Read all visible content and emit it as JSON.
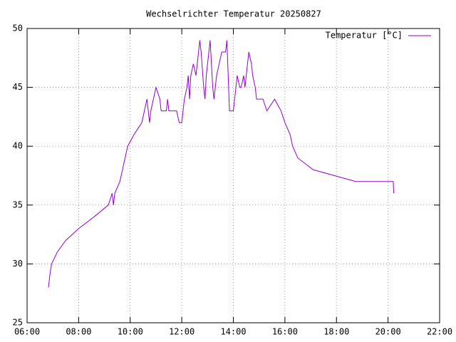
{
  "chart_data": {
    "type": "line",
    "title": "Wechselrichter Temperatur 20250827",
    "x": [
      6.83,
      6.88,
      6.95,
      7.17,
      7.5,
      8.0,
      8.6,
      9.15,
      9.3,
      9.35,
      9.4,
      9.6,
      9.7,
      9.8,
      9.9,
      10.15,
      10.45,
      10.55,
      10.65,
      10.7,
      10.75,
      10.8,
      10.9,
      11.0,
      11.15,
      11.2,
      11.4,
      11.45,
      11.5,
      11.8,
      11.9,
      12.0,
      12.05,
      12.1,
      12.2,
      12.25,
      12.3,
      12.35,
      12.45,
      12.55,
      12.65,
      12.7,
      12.75,
      12.85,
      12.9,
      12.95,
      13.05,
      13.1,
      13.2,
      13.25,
      13.35,
      13.45,
      13.55,
      13.7,
      13.75,
      13.85,
      14.0,
      14.05,
      14.15,
      14.25,
      14.3,
      14.4,
      14.45,
      14.5,
      14.55,
      14.6,
      14.7,
      14.75,
      14.85,
      14.9,
      15.15,
      15.3,
      15.6,
      15.85,
      16.0,
      16.2,
      16.3,
      16.5,
      17.1,
      18.75,
      20.2,
      20.22
    ],
    "series": [
      {
        "name": "Temperatur [°C]",
        "color": "#9400d3",
        "values": [
          28,
          29,
          30,
          31,
          32,
          33,
          34,
          35,
          36,
          35,
          36,
          37,
          38,
          39,
          40,
          41,
          42,
          43,
          44,
          43,
          42,
          43,
          44,
          45,
          44,
          43,
          43,
          44,
          43,
          43,
          42,
          42,
          43,
          44,
          45,
          46,
          44,
          46,
          47,
          46,
          48,
          49,
          48,
          45,
          44,
          46,
          48,
          49,
          45,
          44,
          46,
          47,
          48,
          48,
          49,
          43,
          43,
          44,
          46,
          45,
          45,
          46,
          45,
          46,
          47,
          48,
          47,
          46,
          45,
          44,
          44,
          43,
          44,
          43,
          42,
          41,
          40,
          39,
          38,
          37,
          37,
          36
        ]
      }
    ],
    "xlim": [
      6,
      22
    ],
    "xticks": [
      {
        "value": 6,
        "label": "06:00"
      },
      {
        "value": 8,
        "label": "08:00"
      },
      {
        "value": 10,
        "label": "10:00"
      },
      {
        "value": 12,
        "label": "12:00"
      },
      {
        "value": 14,
        "label": "14:00"
      },
      {
        "value": 16,
        "label": "16:00"
      },
      {
        "value": 18,
        "label": "18:00"
      },
      {
        "value": 20,
        "label": "20:00"
      },
      {
        "value": 22,
        "label": "22:00"
      }
    ],
    "ylim": [
      25,
      50
    ],
    "yticks": [
      25,
      30,
      35,
      40,
      45,
      50
    ],
    "grid": true,
    "legend": "top-right"
  }
}
